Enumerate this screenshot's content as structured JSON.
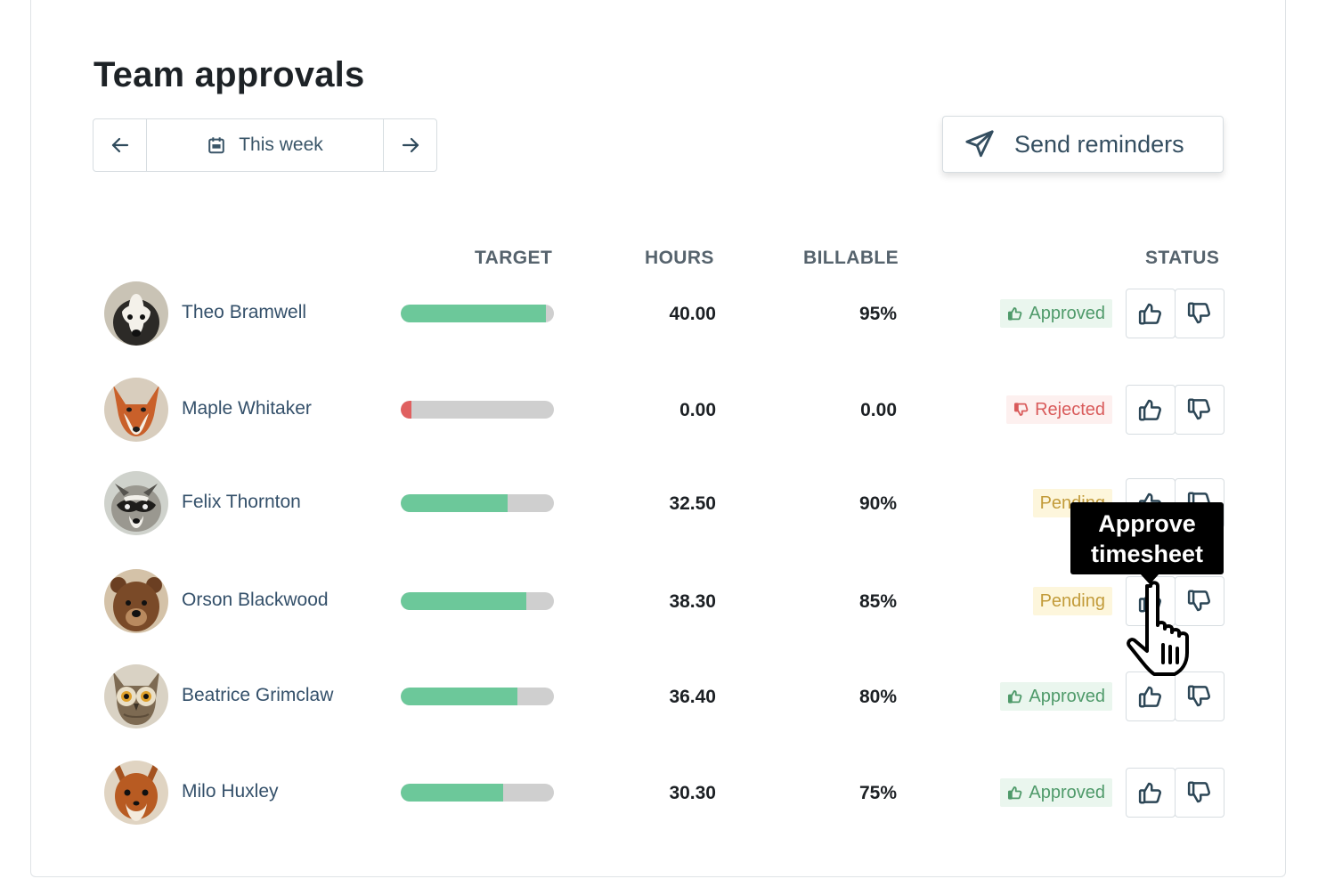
{
  "header": {
    "title": "Team approvals",
    "range_label": "This week",
    "send_label": "Send reminders"
  },
  "columns": {
    "target": "TARGET",
    "hours": "HOURS",
    "billable": "BILLABLE",
    "status": "STATUS"
  },
  "colors": {
    "progress_good": "#6cc89a",
    "progress_low": "#e06060",
    "progress_track": "#cfcfcf",
    "approved": "#4f9a6a",
    "rejected": "#d95b5b",
    "pending": "#c29b3a"
  },
  "rows": [
    {
      "name": "Theo Bramwell",
      "avatar": "badger",
      "target_progress": 0.95,
      "hours": "40.00",
      "billable": "95%",
      "status": "Approved",
      "status_type": "approved"
    },
    {
      "name": "Maple Whitaker",
      "avatar": "fox",
      "target_progress": 0.0,
      "hours": "0.00",
      "billable": "0.00",
      "status": "Rejected",
      "status_type": "rejected"
    },
    {
      "name": "Felix Thornton",
      "avatar": "raccoon",
      "target_progress": 0.7,
      "hours": "32.50",
      "billable": "90%",
      "status": "Pending",
      "status_type": "pending"
    },
    {
      "name": "Orson Blackwood",
      "avatar": "bear",
      "target_progress": 0.82,
      "hours": "38.30",
      "billable": "85%",
      "status": "Pending",
      "status_type": "pending"
    },
    {
      "name": "Beatrice Grimclaw",
      "avatar": "owl",
      "target_progress": 0.76,
      "hours": "36.40",
      "billable": "80%",
      "status": "Approved",
      "status_type": "approved"
    },
    {
      "name": "Milo Huxley",
      "avatar": "squirrel",
      "target_progress": 0.67,
      "hours": "30.30",
      "billable": "75%",
      "status": "Approved",
      "status_type": "approved"
    }
  ],
  "tooltip": {
    "line1": "Approve",
    "line2": "timesheet"
  },
  "icons": {
    "prev": "arrow-left-icon",
    "next": "arrow-right-icon",
    "calendar": "calendar-icon",
    "send": "paper-plane-icon",
    "approve": "thumbs-up-icon",
    "reject": "thumbs-down-icon",
    "cursor": "hand-pointer-icon"
  }
}
